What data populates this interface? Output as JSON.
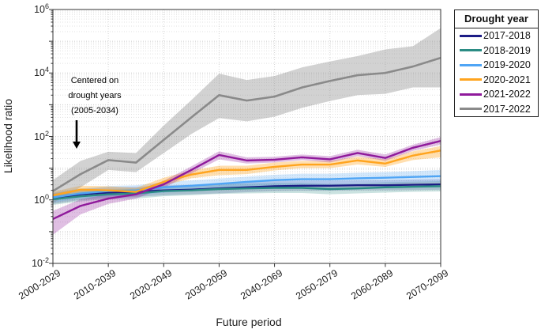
{
  "y_axis": {
    "label": "Likelihood ratio",
    "tick_exponents": [
      6,
      4,
      2,
      0,
      -2
    ],
    "min_exponent": -2,
    "max_exponent": 6
  },
  "x_axis": {
    "label": "Future period",
    "tick_labels": [
      "2000-2029",
      "2010-2039",
      "2020-2049",
      "2030-2059",
      "2040-2069",
      "2050-2079",
      "2060-2089",
      "2070-2099"
    ]
  },
  "annotation": {
    "lines": [
      "Centered on",
      "drought years",
      "(2005-2034)"
    ]
  },
  "legend": {
    "title": "Drought year",
    "entries": [
      {
        "label": "2017-2018",
        "color": "#1C1C86"
      },
      {
        "label": "2018-2019",
        "color": "#2B8C84"
      },
      {
        "label": "2019-2020",
        "color": "#4FA5F5"
      },
      {
        "label": "2020-2021",
        "color": "#FFA41E"
      },
      {
        "label": "2021-2022",
        "color": "#8F1A9B"
      },
      {
        "label": "2017-2022",
        "color": "#8A8A8A"
      }
    ]
  },
  "chart_data": {
    "type": "line",
    "yscale": "log",
    "ylim": [
      0.01,
      1000000
    ],
    "grid": "major and minor, dotted",
    "legend_position": "outside top-right",
    "title": "",
    "xlabel": "Future period",
    "ylabel": "Likelihood ratio",
    "x_periods": [
      "2000-2029",
      "2005-2034",
      "2010-2039",
      "2015-2044",
      "2020-2049",
      "2025-2054",
      "2030-2059",
      "2035-2064",
      "2040-2069",
      "2045-2074",
      "2050-2079",
      "2055-2084",
      "2060-2089",
      "2065-2094",
      "2070-2099"
    ],
    "x_tick_indices": [
      0,
      2,
      4,
      6,
      8,
      10,
      12,
      14
    ],
    "series": [
      {
        "name": "2017-2018",
        "color": "#1C1C86",
        "band_opacity": 0.2,
        "width": 2.4,
        "values": [
          1.1,
          1.5,
          1.7,
          1.8,
          2.0,
          2.1,
          2.3,
          2.5,
          2.7,
          2.8,
          2.8,
          2.9,
          2.9,
          3.0,
          3.1
        ],
        "band_low": [
          0.75,
          1.0,
          1.15,
          1.25,
          1.4,
          1.5,
          1.6,
          1.75,
          1.9,
          1.95,
          1.95,
          2.0,
          2.0,
          2.05,
          2.1
        ],
        "band_high": [
          1.6,
          2.2,
          2.5,
          2.6,
          2.9,
          3.0,
          3.3,
          3.6,
          3.9,
          4.05,
          4.05,
          4.2,
          4.25,
          4.4,
          4.55
        ]
      },
      {
        "name": "2018-2019",
        "color": "#2B8C84",
        "band_opacity": 0.25,
        "width": 2.4,
        "values": [
          1.05,
          1.3,
          1.5,
          1.6,
          1.9,
          2.0,
          2.2,
          2.3,
          2.4,
          2.4,
          2.2,
          2.3,
          2.5,
          2.6,
          2.7
        ],
        "band_low": [
          0.7,
          0.9,
          1.05,
          1.1,
          1.3,
          1.4,
          1.55,
          1.6,
          1.65,
          1.65,
          1.5,
          1.6,
          1.7,
          1.8,
          1.85
        ],
        "band_high": [
          1.55,
          1.9,
          2.15,
          2.3,
          2.75,
          2.9,
          3.15,
          3.3,
          3.45,
          3.45,
          3.2,
          3.3,
          3.6,
          3.75,
          3.9
        ]
      },
      {
        "name": "2019-2020",
        "color": "#4FA5F5",
        "band_opacity": 0.25,
        "width": 2.4,
        "values": [
          1.2,
          1.6,
          1.9,
          2.0,
          2.5,
          2.8,
          3.2,
          3.7,
          4.2,
          4.5,
          4.5,
          4.8,
          5.0,
          5.3,
          5.6
        ],
        "band_low": [
          0.85,
          1.1,
          1.3,
          1.4,
          1.7,
          1.9,
          2.2,
          2.5,
          2.8,
          3.0,
          3.0,
          3.2,
          3.3,
          3.5,
          3.6
        ],
        "band_high": [
          1.7,
          2.3,
          2.75,
          2.9,
          3.65,
          4.1,
          4.7,
          5.4,
          6.2,
          6.7,
          6.7,
          7.2,
          7.55,
          8.05,
          8.8
        ]
      },
      {
        "name": "2020-2021",
        "color": "#FFA41E",
        "band_opacity": 0.35,
        "width": 2.4,
        "values": [
          1.4,
          2.1,
          2.0,
          1.8,
          3.7,
          6.3,
          8.8,
          8.8,
          11.0,
          13.0,
          13.0,
          17.5,
          14.0,
          25.0,
          36.0
        ],
        "band_low": [
          1.1,
          1.6,
          1.5,
          1.4,
          2.8,
          4.8,
          6.0,
          6.5,
          8.5,
          10.0,
          10.0,
          13.0,
          11.0,
          18.0,
          22.0
        ],
        "band_high": [
          1.8,
          2.8,
          2.7,
          2.4,
          5.0,
          8.5,
          12.0,
          12.0,
          15.0,
          17.0,
          17.0,
          23.0,
          19.0,
          34.0,
          50.0
        ]
      },
      {
        "name": "2021-2022",
        "color": "#8F1A9B",
        "band_opacity": 0.28,
        "width": 2.4,
        "values": [
          0.25,
          0.65,
          1.1,
          1.5,
          3.1,
          8.8,
          26.0,
          17.5,
          18.5,
          22.0,
          19.0,
          30.0,
          21.0,
          44.0,
          72.0
        ],
        "band_low": [
          0.08,
          0.35,
          0.75,
          1.1,
          2.4,
          6.8,
          19.0,
          14.0,
          15.0,
          18.0,
          15.0,
          24.0,
          17.0,
          35.0,
          55.0
        ],
        "band_high": [
          0.45,
          1.05,
          1.5,
          2.0,
          4.0,
          11.5,
          34.0,
          22.0,
          23.0,
          27.0,
          24.0,
          38.0,
          27.0,
          55.0,
          95.0
        ]
      },
      {
        "name": "2017-2022",
        "color": "#8A8A8A",
        "band_opacity": 0.38,
        "width": 2.6,
        "values": [
          1.9,
          6.5,
          18.0,
          15.0,
          78.0,
          400,
          2000,
          1350,
          1800,
          3500,
          5600,
          8500,
          10000,
          16000,
          30000
        ],
        "band_low": [
          0.8,
          2.5,
          8.8,
          7.5,
          30.0,
          120,
          380,
          300,
          420,
          800,
          1300,
          2000,
          2200,
          3500,
          3500
        ],
        "band_high": [
          4.2,
          17.0,
          33.0,
          30.0,
          220,
          1400,
          9500,
          6000,
          8000,
          15000,
          23000,
          34000,
          55000,
          70000,
          260000
        ]
      }
    ]
  }
}
